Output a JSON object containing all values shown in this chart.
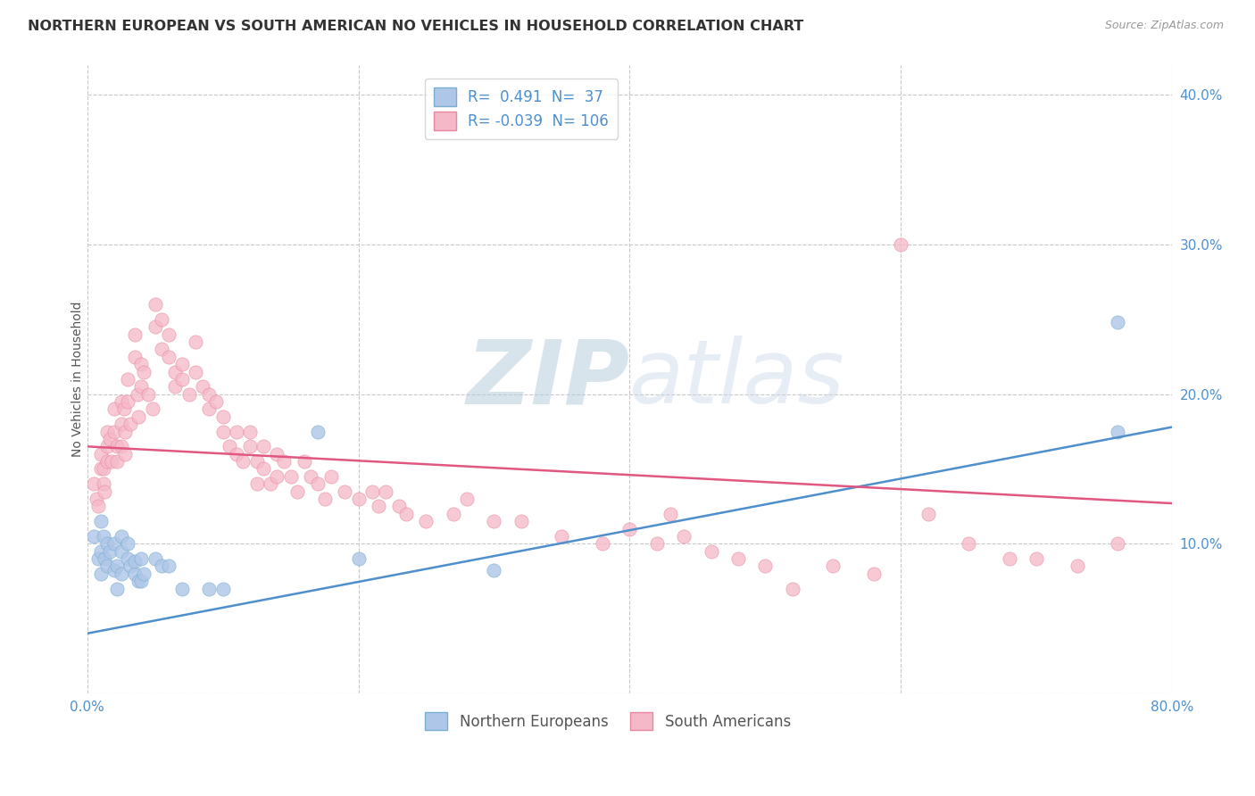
{
  "title": "NORTHERN EUROPEAN VS SOUTH AMERICAN NO VEHICLES IN HOUSEHOLD CORRELATION CHART",
  "source": "Source: ZipAtlas.com",
  "ylabel": "No Vehicles in Household",
  "xlim": [
    0.0,
    0.8
  ],
  "ylim": [
    0.0,
    0.42
  ],
  "xtick_positions": [
    0.0,
    0.2,
    0.4,
    0.6,
    0.8
  ],
  "xtick_labels": [
    "0.0%",
    "",
    "",
    "",
    "80.0%"
  ],
  "ytick_positions": [
    0.0,
    0.1,
    0.2,
    0.3,
    0.4
  ],
  "ytick_labels": [
    "",
    "10.0%",
    "20.0%",
    "30.0%",
    "40.0%"
  ],
  "blue_R": "0.491",
  "blue_N": "37",
  "pink_R": "-0.039",
  "pink_N": "106",
  "blue_color": "#aec6e8",
  "pink_color": "#f5b8c8",
  "blue_edge_color": "#7aaed0",
  "pink_edge_color": "#e888a0",
  "blue_line_color": "#4f8fcc",
  "pink_line_color": "#e05880",
  "legend_blue_label": "Northern Europeans",
  "legend_pink_label": "South Americans",
  "blue_line_y0": 0.04,
  "blue_line_y1": 0.178,
  "pink_line_y0": 0.165,
  "pink_line_y1": 0.127,
  "blue_scatter_x": [
    0.005,
    0.008,
    0.01,
    0.01,
    0.01,
    0.012,
    0.013,
    0.015,
    0.015,
    0.017,
    0.02,
    0.02,
    0.022,
    0.022,
    0.025,
    0.025,
    0.025,
    0.03,
    0.03,
    0.032,
    0.035,
    0.035,
    0.038,
    0.04,
    0.04,
    0.042,
    0.05,
    0.055,
    0.06,
    0.07,
    0.09,
    0.1,
    0.17,
    0.2,
    0.3,
    0.76,
    0.76
  ],
  "blue_scatter_y": [
    0.105,
    0.09,
    0.115,
    0.095,
    0.08,
    0.105,
    0.09,
    0.1,
    0.085,
    0.095,
    0.1,
    0.082,
    0.07,
    0.085,
    0.105,
    0.095,
    0.08,
    0.1,
    0.09,
    0.085,
    0.08,
    0.088,
    0.075,
    0.09,
    0.075,
    0.08,
    0.09,
    0.085,
    0.085,
    0.07,
    0.07,
    0.07,
    0.175,
    0.09,
    0.082,
    0.248,
    0.175
  ],
  "pink_scatter_x": [
    0.005,
    0.007,
    0.008,
    0.01,
    0.01,
    0.012,
    0.012,
    0.013,
    0.015,
    0.015,
    0.015,
    0.017,
    0.018,
    0.02,
    0.02,
    0.022,
    0.022,
    0.025,
    0.025,
    0.025,
    0.027,
    0.028,
    0.028,
    0.03,
    0.03,
    0.032,
    0.035,
    0.035,
    0.037,
    0.038,
    0.04,
    0.04,
    0.042,
    0.045,
    0.048,
    0.05,
    0.05,
    0.055,
    0.055,
    0.06,
    0.06,
    0.065,
    0.065,
    0.07,
    0.07,
    0.075,
    0.08,
    0.08,
    0.085,
    0.09,
    0.09,
    0.095,
    0.1,
    0.1,
    0.105,
    0.11,
    0.11,
    0.115,
    0.12,
    0.12,
    0.125,
    0.125,
    0.13,
    0.13,
    0.135,
    0.14,
    0.14,
    0.145,
    0.15,
    0.155,
    0.16,
    0.165,
    0.17,
    0.175,
    0.18,
    0.19,
    0.2,
    0.21,
    0.215,
    0.22,
    0.23,
    0.235,
    0.25,
    0.27,
    0.28,
    0.3,
    0.32,
    0.35,
    0.38,
    0.4,
    0.42,
    0.43,
    0.44,
    0.46,
    0.48,
    0.5,
    0.52,
    0.55,
    0.58,
    0.6,
    0.62,
    0.65,
    0.68,
    0.7,
    0.73,
    0.76
  ],
  "pink_scatter_y": [
    0.14,
    0.13,
    0.125,
    0.16,
    0.15,
    0.15,
    0.14,
    0.135,
    0.175,
    0.165,
    0.155,
    0.17,
    0.155,
    0.19,
    0.175,
    0.165,
    0.155,
    0.195,
    0.18,
    0.165,
    0.19,
    0.175,
    0.16,
    0.21,
    0.195,
    0.18,
    0.24,
    0.225,
    0.2,
    0.185,
    0.22,
    0.205,
    0.215,
    0.2,
    0.19,
    0.26,
    0.245,
    0.25,
    0.23,
    0.24,
    0.225,
    0.215,
    0.205,
    0.22,
    0.21,
    0.2,
    0.235,
    0.215,
    0.205,
    0.2,
    0.19,
    0.195,
    0.185,
    0.175,
    0.165,
    0.175,
    0.16,
    0.155,
    0.175,
    0.165,
    0.155,
    0.14,
    0.165,
    0.15,
    0.14,
    0.16,
    0.145,
    0.155,
    0.145,
    0.135,
    0.155,
    0.145,
    0.14,
    0.13,
    0.145,
    0.135,
    0.13,
    0.135,
    0.125,
    0.135,
    0.125,
    0.12,
    0.115,
    0.12,
    0.13,
    0.115,
    0.115,
    0.105,
    0.1,
    0.11,
    0.1,
    0.12,
    0.105,
    0.095,
    0.09,
    0.085,
    0.07,
    0.085,
    0.08,
    0.3,
    0.12,
    0.1,
    0.09,
    0.09,
    0.085,
    0.1
  ]
}
